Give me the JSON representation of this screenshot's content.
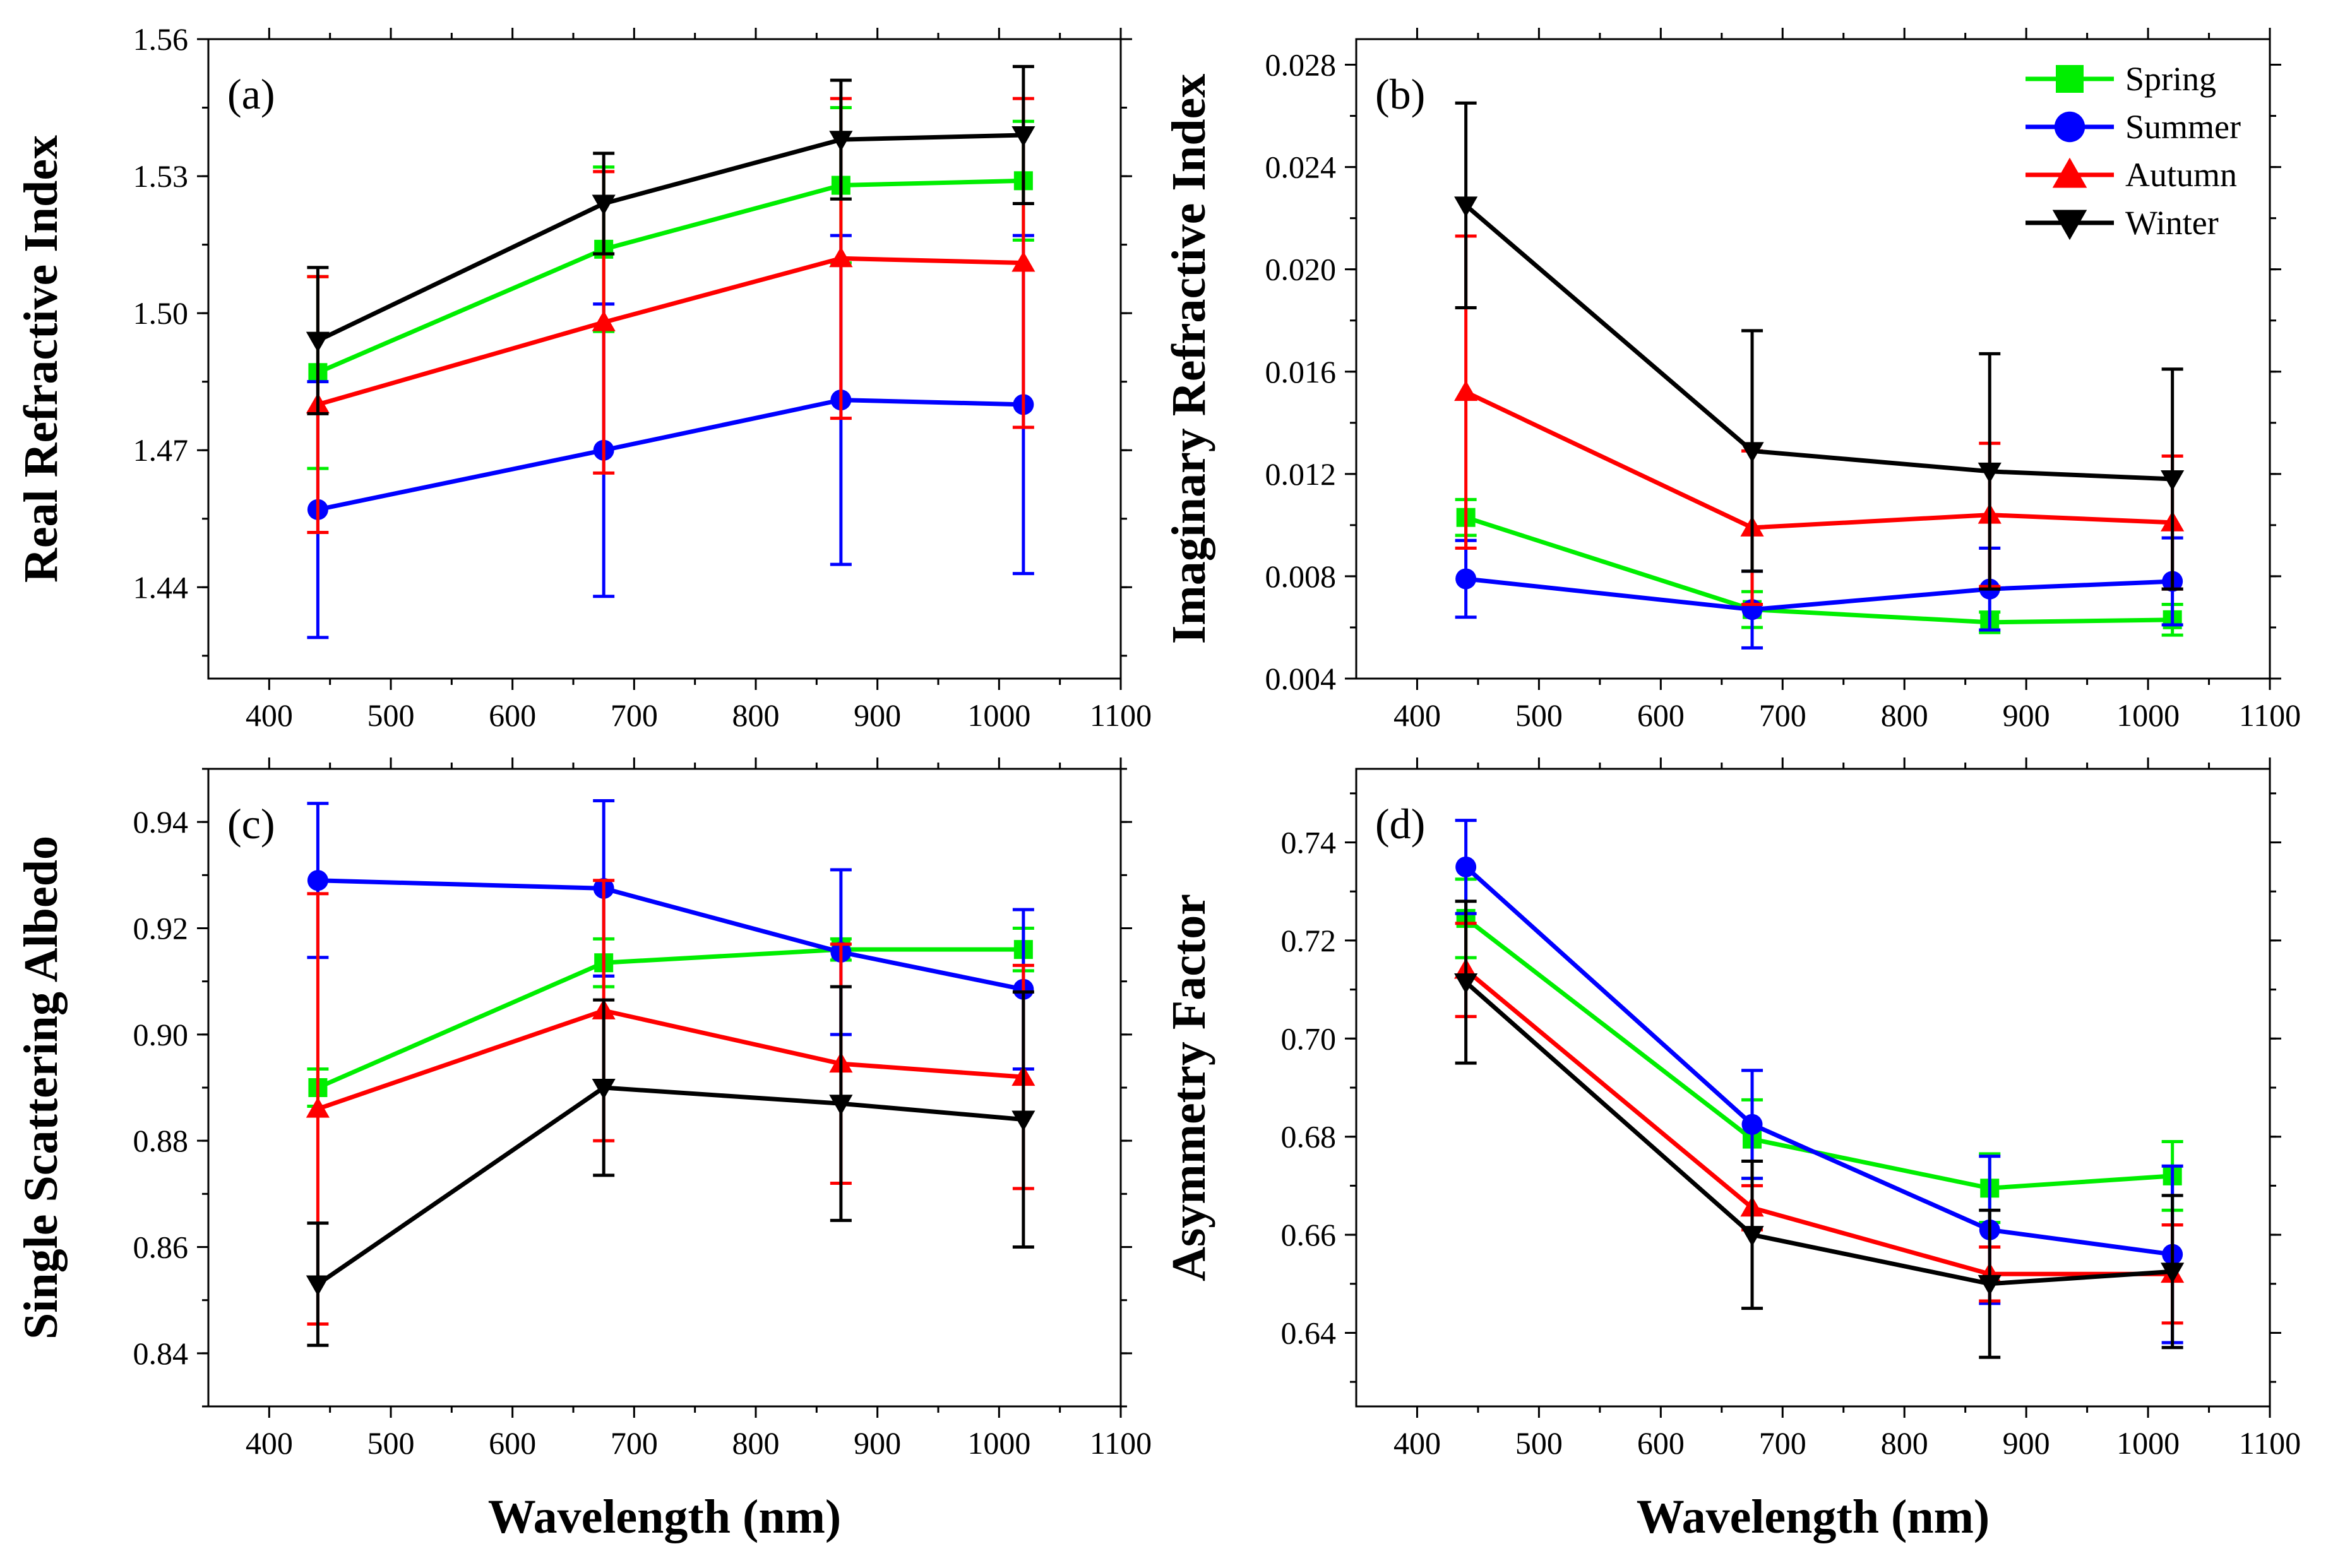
{
  "colors": {
    "Spring": "#00ee00",
    "Summer": "#0000ff",
    "Autumn": "#ff0000",
    "Winter": "#000000"
  },
  "legend": [
    {
      "name": "Spring",
      "marker": "square"
    },
    {
      "name": "Summer",
      "marker": "circle"
    },
    {
      "name": "Autumn",
      "marker": "triangle-up"
    },
    {
      "name": "Winter",
      "marker": "triangle-down"
    }
  ],
  "xticks": [
    "400",
    "500",
    "600",
    "700",
    "800",
    "900",
    "1000",
    "1100"
  ],
  "chart_data": [
    {
      "type": "line",
      "tag": "(a)",
      "title": "",
      "xlabel": "",
      "ylabel": "Real Refractive Index",
      "xlim": [
        350,
        1100
      ],
      "ylim": [
        1.42,
        1.56
      ],
      "yticks": [
        "1.44",
        "1.47",
        "1.50",
        "1.53",
        "1.56"
      ],
      "x": [
        440,
        675,
        870,
        1020
      ],
      "series": [
        {
          "name": "Spring",
          "values": [
            1.487,
            1.514,
            1.528,
            1.529
          ],
          "errors": [
            0.021,
            0.018,
            0.017,
            0.013
          ]
        },
        {
          "name": "Summer",
          "values": [
            1.457,
            1.47,
            1.481,
            1.48
          ],
          "errors": [
            0.028,
            0.032,
            0.036,
            0.037
          ]
        },
        {
          "name": "Autumn",
          "values": [
            1.48,
            1.498,
            1.512,
            1.511
          ],
          "errors": [
            0.028,
            0.033,
            0.035,
            0.036
          ]
        },
        {
          "name": "Winter",
          "values": [
            1.494,
            1.524,
            1.538,
            1.539
          ],
          "errors": [
            0.016,
            0.011,
            0.013,
            0.015
          ]
        }
      ]
    },
    {
      "type": "line",
      "tag": "(b)",
      "title": "",
      "xlabel": "",
      "ylabel": "Imaginary Refractive Index",
      "xlim": [
        350,
        1100
      ],
      "ylim": [
        0.004,
        0.029
      ],
      "yticks": [
        "0.004",
        "0.008",
        "0.012",
        "0.016",
        "0.020",
        "0.024",
        "0.028"
      ],
      "x": [
        440,
        675,
        870,
        1020
      ],
      "series": [
        {
          "name": "Spring",
          "values": [
            0.0103,
            0.0067,
            0.0062,
            0.0063
          ],
          "errors": [
            0.0007,
            0.0007,
            0.0004,
            0.0006
          ]
        },
        {
          "name": "Summer",
          "values": [
            0.0079,
            0.0067,
            0.0075,
            0.0078
          ],
          "errors": [
            0.0015,
            0.0015,
            0.0016,
            0.0017
          ]
        },
        {
          "name": "Autumn",
          "values": [
            0.0152,
            0.0099,
            0.0104,
            0.0101
          ],
          "errors": [
            0.0061,
            0.003,
            0.0028,
            0.0026
          ]
        },
        {
          "name": "Winter",
          "values": [
            0.0225,
            0.0129,
            0.0121,
            0.0118
          ],
          "errors": [
            0.004,
            0.0047,
            0.0046,
            0.0043
          ]
        }
      ]
    },
    {
      "type": "line",
      "tag": "(c)",
      "title": "",
      "xlabel": "Wavelength (nm)",
      "ylabel": "Single Scattering Albedo",
      "xlim": [
        350,
        1100
      ],
      "ylim": [
        0.83,
        0.95
      ],
      "yticks": [
        "0.84",
        "0.86",
        "0.88",
        "0.90",
        "0.92",
        "0.94"
      ],
      "x": [
        440,
        675,
        870,
        1020
      ],
      "series": [
        {
          "name": "Spring",
          "values": [
            0.89,
            0.9135,
            0.916,
            0.916
          ],
          "errors": [
            0.0035,
            0.0045,
            0.002,
            0.004
          ]
        },
        {
          "name": "Summer",
          "values": [
            0.929,
            0.9275,
            0.9155,
            0.9085
          ],
          "errors": [
            0.0145,
            0.0165,
            0.0155,
            0.015
          ]
        },
        {
          "name": "Autumn",
          "values": [
            0.886,
            0.9045,
            0.8945,
            0.892
          ],
          "errors": [
            0.0405,
            0.0245,
            0.0225,
            0.021
          ]
        },
        {
          "name": "Winter",
          "values": [
            0.853,
            0.89,
            0.887,
            0.884
          ],
          "errors": [
            0.0115,
            0.0165,
            0.022,
            0.024
          ]
        }
      ]
    },
    {
      "type": "line",
      "tag": "(d)",
      "title": "",
      "xlabel": "Wavelength (nm)",
      "ylabel": "Asymmetry Factor",
      "xlim": [
        350,
        1100
      ],
      "ylim": [
        0.625,
        0.755
      ],
      "yticks": [
        "0.64",
        "0.66",
        "0.68",
        "0.70",
        "0.72",
        "0.74"
      ],
      "x": [
        440,
        675,
        870,
        1020
      ],
      "series": [
        {
          "name": "Spring",
          "values": [
            0.7245,
            0.6795,
            0.6695,
            0.672
          ],
          "errors": [
            0.008,
            0.008,
            0.007,
            0.007
          ]
        },
        {
          "name": "Summer",
          "values": [
            0.735,
            0.6825,
            0.661,
            0.656
          ],
          "errors": [
            0.0095,
            0.011,
            0.015,
            0.018
          ]
        },
        {
          "name": "Autumn",
          "values": [
            0.714,
            0.6655,
            0.652,
            0.652
          ],
          "errors": [
            0.0095,
            0.0045,
            0.0055,
            0.01
          ]
        },
        {
          "name": "Winter",
          "values": [
            0.7115,
            0.66,
            0.65,
            0.6525
          ],
          "errors": [
            0.0165,
            0.015,
            0.015,
            0.0155
          ]
        }
      ]
    }
  ]
}
